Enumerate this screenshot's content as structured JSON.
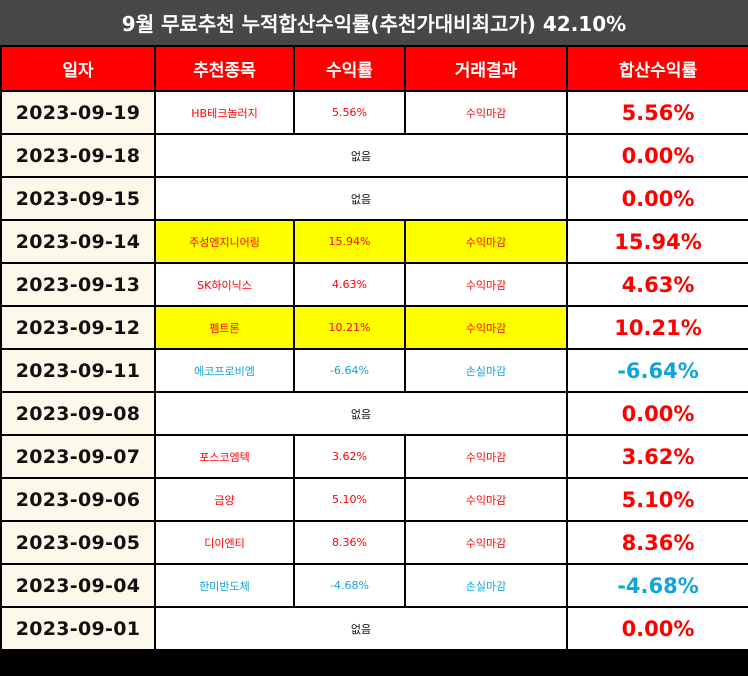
{
  "title": "9월 무료추천 누적합산수익률(추천가대비최고가) 42.10%",
  "headers": [
    "일자",
    "추천종목",
    "수익률",
    "거래결과",
    "합산수익률"
  ],
  "rows": [
    {
      "date": "2023-09-19",
      "stock": "HB테크놀러지",
      "rate": "5.56%",
      "result": "수익마감",
      "total": "5.56%",
      "kind": "gain",
      "highlight": false
    },
    {
      "date": "2023-09-18",
      "none": "없음",
      "total": "0.00%",
      "kind": "gain"
    },
    {
      "date": "2023-09-15",
      "none": "없음",
      "total": "0.00%",
      "kind": "gain"
    },
    {
      "date": "2023-09-14",
      "stock": "주성엔지니어링",
      "rate": "15.94%",
      "result": "수익마감",
      "total": "15.94%",
      "kind": "gain",
      "highlight": true
    },
    {
      "date": "2023-09-13",
      "stock": "SK하이닉스",
      "rate": "4.63%",
      "result": "수익마감",
      "total": "4.63%",
      "kind": "gain",
      "highlight": false
    },
    {
      "date": "2023-09-12",
      "stock": "펨트론",
      "rate": "10.21%",
      "result": "수익마감",
      "total": "10.21%",
      "kind": "gain",
      "highlight": true
    },
    {
      "date": "2023-09-11",
      "stock": "에코프로비엠",
      "rate": "-6.64%",
      "result": "손실마감",
      "total": "-6.64%",
      "kind": "loss",
      "highlight": false
    },
    {
      "date": "2023-09-08",
      "none": "없음",
      "total": "0.00%",
      "kind": "gain"
    },
    {
      "date": "2023-09-07",
      "stock": "포스코엠텍",
      "rate": "3.62%",
      "result": "수익마감",
      "total": "3.62%",
      "kind": "gain",
      "highlight": false
    },
    {
      "date": "2023-09-06",
      "stock": "금양",
      "rate": "5.10%",
      "result": "수익마감",
      "total": "5.10%",
      "kind": "gain",
      "highlight": false
    },
    {
      "date": "2023-09-05",
      "stock": "디이엔티",
      "rate": "8.36%",
      "result": "수익마감",
      "total": "8.36%",
      "kind": "gain",
      "highlight": false
    },
    {
      "date": "2023-09-04",
      "stock": "한미반도체",
      "rate": "-4.68%",
      "result": "손실마감",
      "total": "-4.68%",
      "kind": "loss",
      "highlight": false
    },
    {
      "date": "2023-09-01",
      "none": "없음",
      "total": "0.00%",
      "kind": "gain"
    }
  ],
  "colors": {
    "header": "#ff0000",
    "title_bar": "#474747",
    "gain": "#ff0000",
    "loss": "#0fa4dc",
    "highlight": "#ffff00",
    "date_cell": "#fcf9ea"
  }
}
